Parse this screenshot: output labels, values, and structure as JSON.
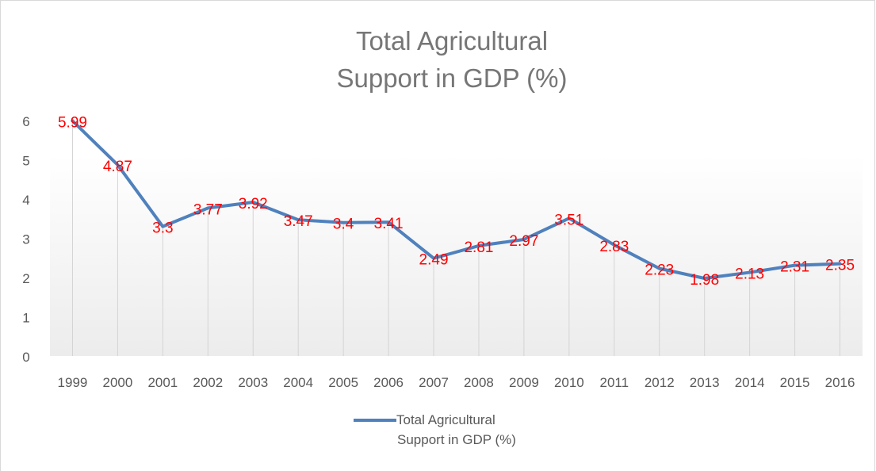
{
  "chart_data": {
    "type": "line",
    "title_lines": [
      "Total Agricultural",
      "Support in GDP (%)"
    ],
    "categories": [
      "1999",
      "2000",
      "2001",
      "2002",
      "2003",
      "2004",
      "2005",
      "2006",
      "2007",
      "2008",
      "2009",
      "2010",
      "2011",
      "2012",
      "2013",
      "2014",
      "2015",
      "2016"
    ],
    "series": [
      {
        "name": "Total Agricultural Support in GDP (%)",
        "name_lines": [
          "Total Agricultural",
          "Support in GDP (%)"
        ],
        "values": [
          5.99,
          4.87,
          3.3,
          3.77,
          3.92,
          3.47,
          3.4,
          3.41,
          2.49,
          2.81,
          2.97,
          3.51,
          2.83,
          2.23,
          1.98,
          2.13,
          2.31,
          2.35
        ],
        "labels": [
          "5.99",
          "4.87",
          "3.3",
          "3.77",
          "3.92",
          "3.47",
          "3.4",
          "3.41",
          "2.49",
          "2.81",
          "2.97",
          "3.51",
          "2.83",
          "2.23",
          "1.98",
          "2.13",
          "2.31",
          "2.35"
        ],
        "color": "#4f81bd"
      }
    ],
    "yticks": [
      "0",
      "1",
      "2",
      "3",
      "4",
      "5",
      "6"
    ],
    "ylim": [
      0,
      6
    ],
    "xlabel": "",
    "ylabel": "",
    "grid": "vertical drop lines",
    "legend": "bottom",
    "label_color": "#ff0000"
  }
}
